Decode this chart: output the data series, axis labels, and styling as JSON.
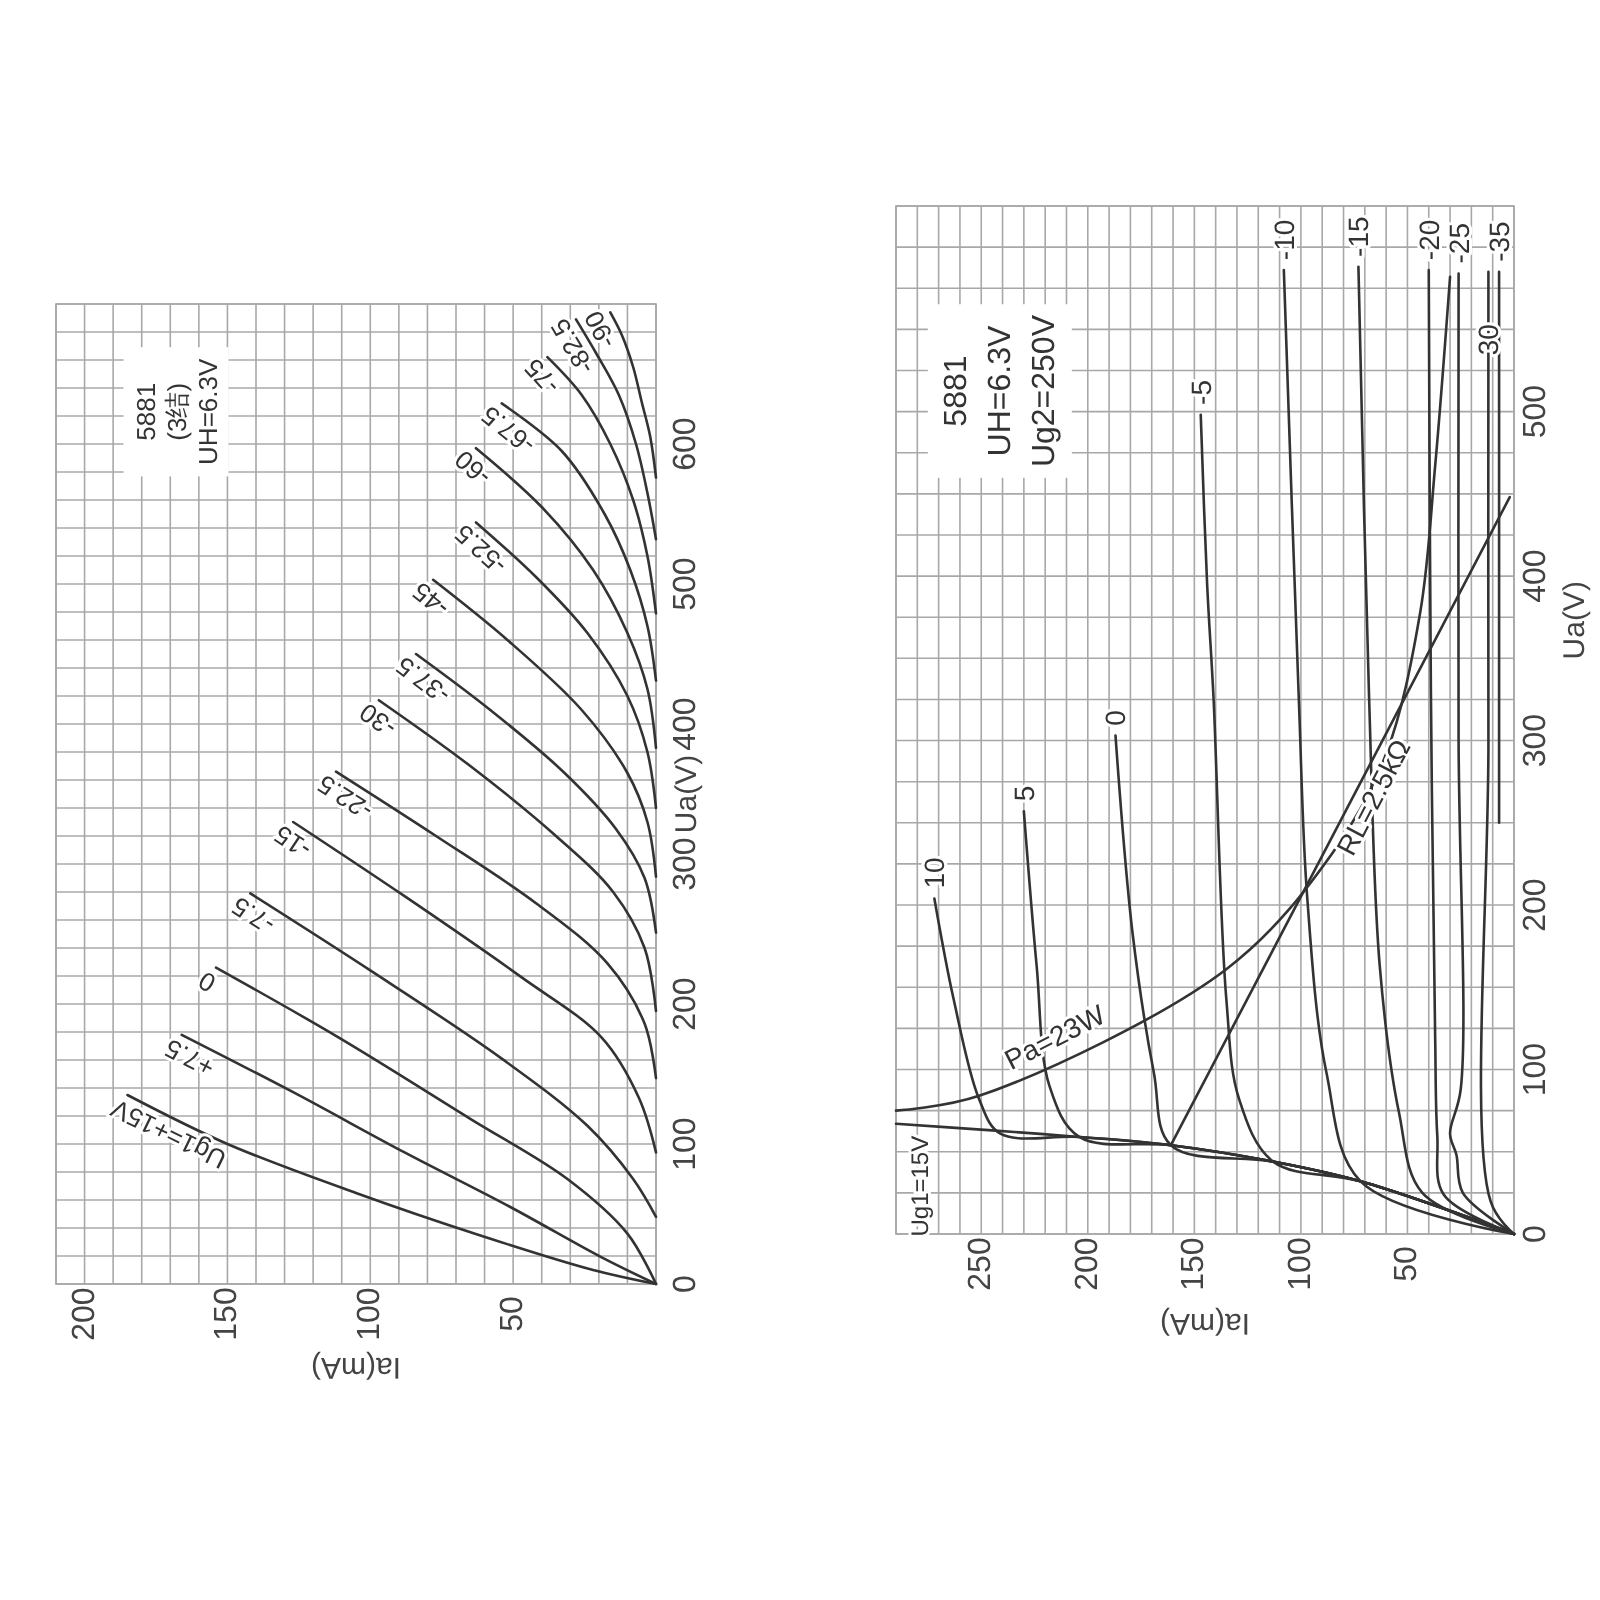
{
  "chart_data": [
    {
      "type": "line",
      "xlabel": "Ia(mA)",
      "ylabel": "Ua(V)",
      "xlim": [
        210,
        0
      ],
      "ylim": [
        0,
        700
      ],
      "xticks": [
        {
          "value": 0,
          "label": null
        },
        {
          "value": 10,
          "label": null
        },
        {
          "value": 20,
          "label": null
        },
        {
          "value": 30,
          "label": null
        },
        {
          "value": 40,
          "label": null
        },
        50,
        {
          "value": 60,
          "label": null
        },
        {
          "value": 70,
          "label": null
        },
        {
          "value": 80,
          "label": null
        },
        {
          "value": 90,
          "label": null
        },
        100,
        {
          "value": 110,
          "label": null
        },
        {
          "value": 120,
          "label": null
        },
        {
          "value": 130,
          "label": null
        },
        {
          "value": 140,
          "label": null
        },
        150,
        {
          "value": 160,
          "label": null
        },
        {
          "value": 170,
          "label": null
        },
        {
          "value": 180,
          "label": null
        },
        {
          "value": 190,
          "label": null
        },
        200,
        {
          "value": 210,
          "label": null
        }
      ],
      "yticks": [
        0,
        {
          "value": 20,
          "label": null
        },
        {
          "value": 40,
          "label": null
        },
        {
          "value": 60,
          "label": null
        },
        {
          "value": 80,
          "label": null
        },
        100,
        {
          "value": 120,
          "label": null
        },
        {
          "value": 140,
          "label": null
        },
        {
          "value": 160,
          "label": null
        },
        {
          "value": 180,
          "label": null
        },
        200,
        {
          "value": 220,
          "label": null
        },
        {
          "value": 240,
          "label": null
        },
        {
          "value": 260,
          "label": null
        },
        {
          "value": 280,
          "label": null
        },
        300,
        {
          "value": 320,
          "label": null
        },
        {
          "value": 340,
          "label": null
        },
        {
          "value": 360,
          "label": null
        },
        {
          "value": 380,
          "label": null
        },
        400,
        {
          "value": 420,
          "label": null
        },
        {
          "value": 440,
          "label": null
        },
        {
          "value": 460,
          "label": null
        },
        {
          "value": 480,
          "label": null
        },
        500,
        {
          "value": 520,
          "label": null
        },
        {
          "value": 540,
          "label": null
        },
        {
          "value": 560,
          "label": null
        },
        {
          "value": 580,
          "label": null
        },
        600,
        {
          "value": 620,
          "label": null
        },
        {
          "value": 640,
          "label": null
        },
        {
          "value": 660,
          "label": null
        },
        {
          "value": 680,
          "label": null
        },
        {
          "value": 700,
          "label": null
        }
      ],
      "grid": true,
      "annotations": [
        "5881",
        "(3结)",
        "UH=6.3V"
      ],
      "series": [
        {
          "name": "Ug1=+15V",
          "color": "#333333",
          "x": [
            0,
            22,
            62,
            105,
            150,
            185
          ],
          "values": [
            0,
            10,
            35,
            65,
            100,
            135
          ]
        },
        {
          "name": "+7.5",
          "color": "#333333",
          "x": [
            0,
            19,
            51,
            88,
            127,
            166
          ],
          "values": [
            0,
            19,
            55,
            94,
            137,
            178
          ]
        },
        {
          "name": "0",
          "color": "#333333",
          "x": [
            0,
            10,
            31,
            65,
            111,
            154
          ],
          "values": [
            0,
            36,
            75,
            118,
            176,
            226
          ]
        },
        {
          "name": "-7.5",
          "color": "#333333",
          "x": [
            0,
            8,
            24,
            54,
            100,
            142
          ],
          "values": [
            48,
            75,
            113,
            161,
            224,
            279
          ]
        },
        {
          "name": "-15",
          "color": "#333333",
          "x": [
            0,
            6,
            19,
            47,
            88,
            127
          ],
          "values": [
            94,
            133,
            176,
            219,
            277,
            330
          ]
        },
        {
          "name": "-22.5",
          "color": "#333333",
          "x": [
            0,
            4,
            17,
            42,
            77,
            112
          ],
          "values": [
            147,
            186,
            229,
            272,
            320,
            366
          ]
        },
        {
          "name": "-30",
          "color": "#333333",
          "x": [
            0,
            4,
            15,
            35,
            65,
            97
          ],
          "values": [
            195,
            240,
            280,
            320,
            370,
            417
          ]
        },
        {
          "name": "-37.5",
          "color": "#333333",
          "x": [
            0,
            4,
            14,
            32,
            58,
            84
          ],
          "values": [
            251,
            290,
            325,
            365,
            410,
            450
          ]
        },
        {
          "name": "-45",
          "color": "#333333",
          "x": [
            0,
            3,
            10,
            26,
            52,
            78
          ],
          "values": [
            291,
            330,
            365,
            410,
            460,
            503
          ]
        },
        {
          "name": "-52.5",
          "color": "#333333",
          "x": [
            0,
            3,
            10,
            24,
            42,
            63
          ],
          "values": [
            340,
            380,
            420,
            465,
            505,
            544
          ]
        },
        {
          "name": "-60",
          "color": "#333333",
          "x": [
            0,
            3,
            10,
            22,
            40,
            63
          ],
          "values": [
            383,
            425,
            465,
            510,
            555,
            597
          ]
        },
        {
          "name": "-67.5",
          "color": "#333333",
          "x": [
            0,
            3,
            9,
            18,
            33,
            54
          ],
          "values": [
            431,
            470,
            510,
            550,
            595,
            629
          ]
        },
        {
          "name": "-75",
          "color": "#333333",
          "x": [
            0,
            3,
            8,
            16,
            26,
            38
          ],
          "values": [
            479,
            520,
            560,
            600,
            635,
            662
          ]
        },
        {
          "name": "-82.5",
          "color": "#333333",
          "x": [
            0,
            3,
            7,
            13,
            21,
            28
          ],
          "values": [
            532,
            565,
            600,
            635,
            665,
            689
          ]
        },
        {
          "name": "-90",
          "color": "#333333",
          "x": [
            0,
            2,
            5,
            8,
            12,
            16
          ],
          "values": [
            576,
            605,
            630,
            655,
            678,
            694
          ]
        }
      ]
    },
    {
      "type": "line",
      "xlabel": "Ia(mA)",
      "ylabel": "Ua(V)",
      "xlim": [
        290,
        0
      ],
      "ylim": [
        0,
        625
      ],
      "xticks": [
        {
          "value": 0,
          "label": null
        },
        {
          "value": 10,
          "label": null
        },
        {
          "value": 20,
          "label": null
        },
        {
          "value": 30,
          "label": null
        },
        {
          "value": 40,
          "label": null
        },
        50,
        {
          "value": 60,
          "label": null
        },
        {
          "value": 70,
          "label": null
        },
        {
          "value": 80,
          "label": null
        },
        {
          "value": 90,
          "label": null
        },
        100,
        {
          "value": 110,
          "label": null
        },
        {
          "value": 120,
          "label": null
        },
        {
          "value": 130,
          "label": null
        },
        {
          "value": 140,
          "label": null
        },
        150,
        {
          "value": 160,
          "label": null
        },
        {
          "value": 170,
          "label": null
        },
        {
          "value": 180,
          "label": null
        },
        {
          "value": 190,
          "label": null
        },
        200,
        {
          "value": 210,
          "label": null
        },
        {
          "value": 220,
          "label": null
        },
        {
          "value": 230,
          "label": null
        },
        {
          "value": 240,
          "label": null
        },
        250,
        {
          "value": 260,
          "label": null
        },
        {
          "value": 270,
          "label": null
        },
        {
          "value": 280,
          "label": null
        },
        {
          "value": 290,
          "label": null
        }
      ],
      "yticks": [
        0,
        {
          "value": 25,
          "label": null
        },
        {
          "value": 50,
          "label": null
        },
        {
          "value": 75,
          "label": null
        },
        100,
        {
          "value": 125,
          "label": null
        },
        {
          "value": 150,
          "label": null
        },
        {
          "value": 175,
          "label": null
        },
        200,
        {
          "value": 225,
          "label": null
        },
        {
          "value": 250,
          "label": null
        },
        {
          "value": 275,
          "label": null
        },
        300,
        {
          "value": 325,
          "label": null
        },
        {
          "value": 350,
          "label": null
        },
        {
          "value": 375,
          "label": null
        },
        400,
        {
          "value": 425,
          "label": null
        },
        {
          "value": 450,
          "label": null
        },
        {
          "value": 475,
          "label": null
        },
        500,
        {
          "value": 525,
          "label": null
        },
        {
          "value": 550,
          "label": null
        },
        {
          "value": 575,
          "label": null
        },
        {
          "value": 600,
          "label": null
        },
        {
          "value": 625,
          "label": null
        }
      ],
      "grid": true,
      "annotations": [
        "5881",
        "UH=6.3V",
        "Ug2=250V"
      ],
      "series": [
        {
          "name": "Ug1=15V",
          "color": "#333333",
          "x": [
            0,
            72,
            113,
            161,
            204,
            245,
            290
          ],
          "values": [
            0,
            32,
            44,
            54,
            59,
            63,
            67
          ]
        },
        {
          "name": "10",
          "color": "#333333",
          "x": [
            0,
            72,
            113,
            161,
            204,
            241,
            251,
            263,
            272
          ],
          "values": [
            0,
            32,
            44,
            54,
            59,
            61,
            82,
            143,
            204
          ]
        },
        {
          "name": "5",
          "color": "#333333",
          "x": [
            0,
            72,
            113,
            161,
            204,
            218,
            224,
            230
          ],
          "values": [
            0,
            32,
            44,
            54,
            59,
            90,
            163,
            257
          ]
        },
        {
          "name": "0",
          "color": "#333333",
          "x": [
            0,
            72,
            113,
            161,
            169,
            179,
            187
          ],
          "values": [
            0,
            32,
            44,
            54,
            98,
            183,
            303
          ]
        },
        {
          "name": "-5",
          "color": "#333333",
          "x": [
            0,
            72,
            113,
            129,
            135,
            141,
            144,
            147
          ],
          "values": [
            0,
            32,
            44,
            82,
            143,
            326,
            395,
            498
          ]
        },
        {
          "name": "-10",
          "color": "#333333",
          "x": [
            0,
            72,
            88,
            97,
            101,
            108
          ],
          "values": [
            0,
            32,
            98,
            204,
            326,
            586
          ]
        },
        {
          "name": "-15",
          "color": "#333333",
          "x": [
            0,
            43,
            54,
            63,
            68,
            73
          ],
          "values": [
            0,
            25,
            74,
            163,
            326,
            588
          ]
        },
        {
          "name": "-20",
          "color": "#333333",
          "x": [
            0,
            33,
            36,
            37,
            39,
            40
          ],
          "values": [
            0,
            24,
            60,
            120,
            330,
            586
          ]
        },
        {
          "name": "-25",
          "color": "#333333",
          "x": [
            0,
            24,
            27,
            30,
            25,
            26,
            26
          ],
          "values": [
            0,
            25,
            48,
            61,
            88,
            300,
            584
          ]
        },
        {
          "name": "30",
          "color": "#333333",
          "x": [
            0,
            11,
            12,
            12
          ],
          "values": [
            0,
            20,
            300,
            585
          ]
        },
        {
          "name": "-35",
          "color": "#333333",
          "x": [
            7,
            7
          ],
          "values": [
            250,
            585
          ]
        },
        {
          "name": "Pa=23W",
          "color": "#333333",
          "x": [
            290,
            251,
            135,
            85,
            60,
            44,
            37,
            30
          ],
          "values": [
            75,
            84,
            161,
            232,
            292,
            378,
            467,
            582
          ]
        },
        {
          "name": "RL=2.5kΩ",
          "color": "#333333",
          "x": [
            161,
            2
          ],
          "values": [
            54,
            448
          ]
        }
      ]
    }
  ]
}
